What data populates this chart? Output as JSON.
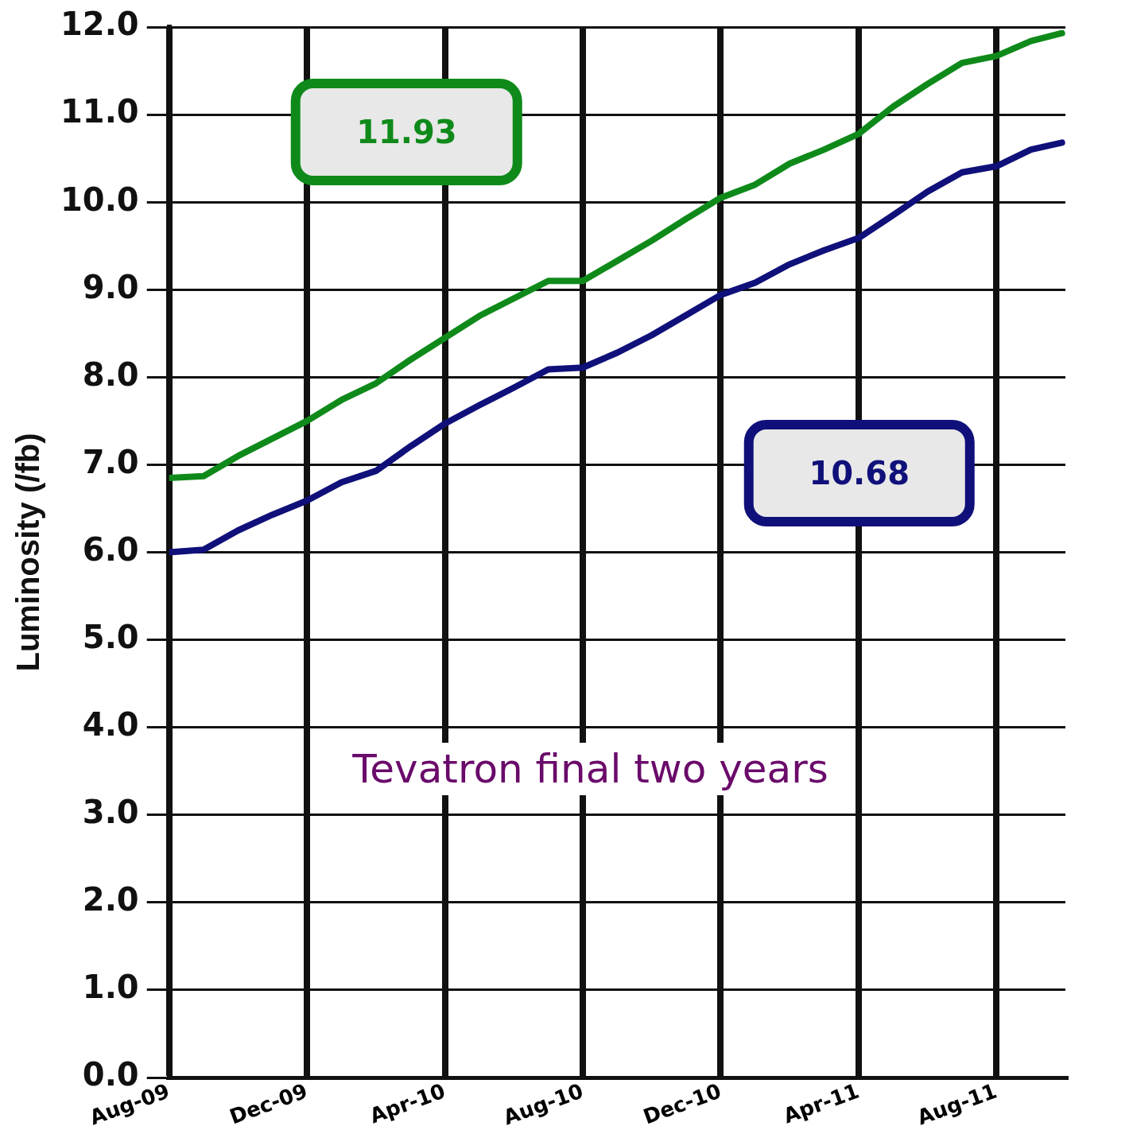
{
  "chart_data": {
    "type": "line",
    "ylabel": "Luminosity (/fb)",
    "x": [
      "2009-08",
      "2009-09",
      "2009-10",
      "2009-11",
      "2009-12",
      "2010-01",
      "2010-02",
      "2010-03",
      "2010-04",
      "2010-05",
      "2010-06",
      "2010-07",
      "2010-08",
      "2010-09",
      "2010-10",
      "2010-11",
      "2010-12",
      "2011-01",
      "2011-02",
      "2011-03",
      "2011-04",
      "2011-05",
      "2011-06",
      "2011-07",
      "2011-08",
      "2011-09",
      "2011-09-28"
    ],
    "series": [
      {
        "color": "#0f8a1a",
        "values": [
          6.85,
          6.87,
          7.1,
          7.3,
          7.5,
          7.74,
          7.93,
          8.2,
          8.45,
          8.7,
          8.9,
          9.1,
          9.1,
          9.33,
          9.56,
          9.81,
          10.05,
          10.2,
          10.44,
          10.6,
          10.78,
          11.09,
          11.35,
          11.59,
          11.67,
          11.84,
          11.93
        ]
      },
      {
        "color": "#10107a",
        "values": [
          6.0,
          6.03,
          6.25,
          6.43,
          6.59,
          6.8,
          6.93,
          7.21,
          7.47,
          7.68,
          7.88,
          8.09,
          8.11,
          8.28,
          8.48,
          8.71,
          8.94,
          9.08,
          9.29,
          9.45,
          9.59,
          9.85,
          10.12,
          10.34,
          10.41,
          10.6,
          10.68
        ]
      }
    ],
    "xlim": [
      "2009-08",
      "2011-10"
    ],
    "xticks": [
      {
        "value": "2009-08",
        "label": "Aug-09"
      },
      {
        "value": "2009-12",
        "label": "Dec-09"
      },
      {
        "value": "2010-04",
        "label": "Apr-10"
      },
      {
        "value": "2010-08",
        "label": "Aug-10"
      },
      {
        "value": "2010-12",
        "label": "Dec-10"
      },
      {
        "value": "2011-04",
        "label": "Apr-11"
      },
      {
        "value": "2011-08",
        "label": "Aug-11"
      }
    ],
    "ylim": [
      0,
      12
    ],
    "yticks": [
      {
        "value": 0,
        "label": "0.0"
      },
      {
        "value": 1,
        "label": "1.0"
      },
      {
        "value": 2,
        "label": "2.0"
      },
      {
        "value": 3,
        "label": "3.0"
      },
      {
        "value": 4,
        "label": "4.0"
      },
      {
        "value": 5,
        "label": "5.0"
      },
      {
        "value": 6,
        "label": "6.0"
      },
      {
        "value": 7,
        "label": "7.0"
      },
      {
        "value": 8,
        "label": "8.0"
      },
      {
        "value": 9,
        "label": "9.0"
      },
      {
        "value": 10,
        "label": "10.0"
      },
      {
        "value": 11,
        "label": "11.0"
      },
      {
        "value": 12,
        "label": "12.0"
      }
    ],
    "grid": true,
    "legend": false,
    "marker": "none",
    "line_style": "solid",
    "annotations": [
      "11.93",
      "10.68",
      "Tevatron final two years"
    ]
  }
}
